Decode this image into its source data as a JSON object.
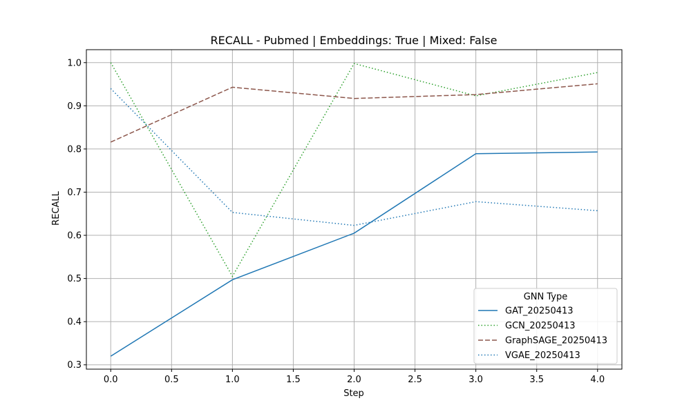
{
  "chart_data": {
    "type": "line",
    "title": "RECALL - Pubmed | Embeddings: True | Mixed: False",
    "xlabel": "Step",
    "ylabel": "RECALL",
    "xlim": [
      -0.2,
      4.2
    ],
    "ylim": [
      0.29,
      1.03
    ],
    "xticks": [
      "0.0",
      "0.5",
      "1.0",
      "1.5",
      "2.0",
      "2.5",
      "3.0",
      "3.5",
      "4.0"
    ],
    "yticks": [
      "0.3",
      "0.4",
      "0.5",
      "0.6",
      "0.7",
      "0.8",
      "0.9",
      "1.0"
    ],
    "grid": true,
    "legend": {
      "title": "GNN Type",
      "placement": "lower right"
    },
    "x": [
      0,
      1,
      2,
      3,
      4
    ],
    "series": [
      {
        "name": "GAT_20250413",
        "values": [
          0.32,
          0.497,
          0.605,
          0.789,
          0.793
        ],
        "color": "#1f77b4",
        "style": "solid"
      },
      {
        "name": "GCN_20250413",
        "values": [
          1.0,
          0.505,
          0.998,
          0.923,
          0.977
        ],
        "color": "#2ca02c",
        "style": "dotted"
      },
      {
        "name": "GraphSAGE_20250413",
        "values": [
          0.816,
          0.943,
          0.917,
          0.926,
          0.951
        ],
        "color": "#8c564b",
        "style": "dashed"
      },
      {
        "name": "VGAE_20250413",
        "values": [
          0.94,
          0.653,
          0.623,
          0.678,
          0.657
        ],
        "color": "#1f77b4",
        "style": "dotted"
      }
    ]
  }
}
